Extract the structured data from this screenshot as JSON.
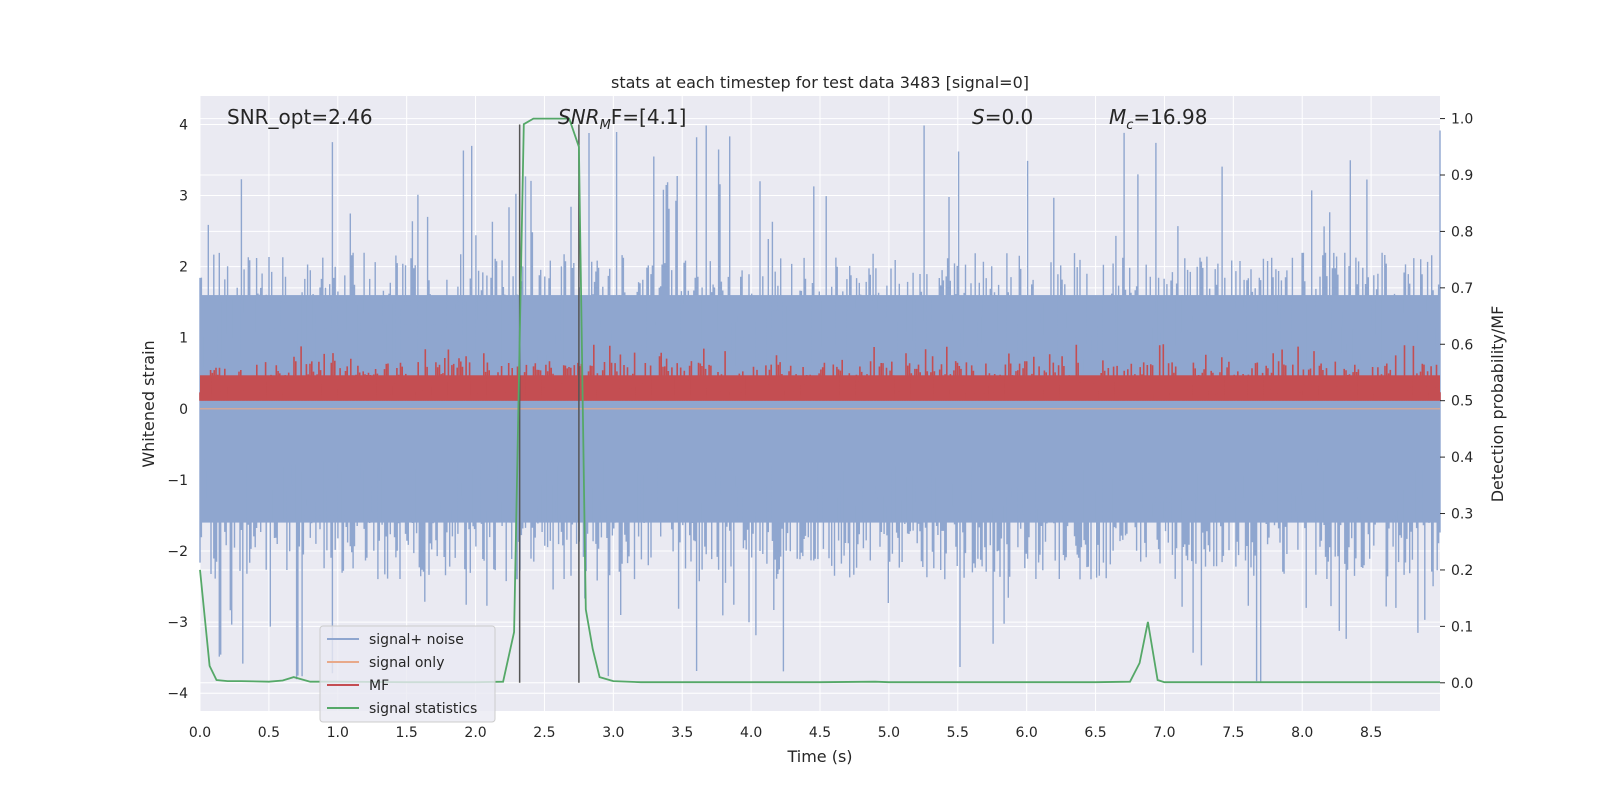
{
  "chart_data": {
    "type": "line",
    "title": "stats at each timestep for test data 3483 [signal=0]",
    "xlabel": "Time (s)",
    "ylabel": "Whitened strain",
    "ylabel_right": "Detection probability/MF",
    "xlim": [
      0,
      9.0
    ],
    "ylim": [
      -4.25,
      4.4
    ],
    "ylim_right": [
      -0.05,
      1.04
    ],
    "x_ticks": [
      "0.0",
      "0.5",
      "1.0",
      "1.5",
      "2.0",
      "2.5",
      "3.0",
      "3.5",
      "4.0",
      "4.5",
      "5.0",
      "5.5",
      "6.0",
      "6.5",
      "7.0",
      "7.5",
      "8.0",
      "8.5"
    ],
    "y_ticks": [
      "4",
      "3",
      "2",
      "1",
      "0",
      "−1",
      "−2",
      "−3",
      "−4"
    ],
    "y_ticks_right": [
      "1.0",
      "0.9",
      "0.8",
      "0.7",
      "0.6",
      "0.5",
      "0.4",
      "0.3",
      "0.2",
      "0.1",
      "0.0"
    ],
    "grid": true,
    "legend_position": "lower-left",
    "annotations": {
      "snr_opt": "SNR_opt=2.46",
      "snr_mf_base": "SNR",
      "snr_mf_sub": "M",
      "snr_mf_rest": "F=[4.1]",
      "s_base": "S",
      "s_rest": "=0.0",
      "mc_base": "M",
      "mc_sub": "c",
      "mc_rest": "=16.98"
    },
    "vertical_lines_x": [
      2.32,
      2.75
    ],
    "series": [
      {
        "name": "signal+ noise",
        "color": "#8fa6cf",
        "axis": "left",
        "description_values": "noise band approx between -1.6 and 1.6 with spikes to +/-4",
        "band": {
          "low_mean": -1.6,
          "high_mean": 1.6,
          "low_min": -3.9,
          "high_max": 4.0
        }
      },
      {
        "name": "signal only",
        "color": "#e8a98a",
        "axis": "left",
        "values_const": 0
      },
      {
        "name": "MF",
        "color": "#c44e52",
        "axis": "right",
        "band": {
          "low": 0.5,
          "high_mean": 0.55,
          "high_max": 0.6
        }
      },
      {
        "name": "signal statistics",
        "color": "#55a868",
        "axis": "right",
        "x": [
          0.0,
          0.07,
          0.12,
          0.2,
          0.3,
          0.5,
          0.6,
          0.68,
          0.8,
          1.0,
          1.5,
          2.0,
          2.2,
          2.28,
          2.35,
          2.42,
          2.5,
          2.6,
          2.68,
          2.75,
          2.8,
          2.85,
          2.9,
          3.0,
          3.2,
          3.5,
          4.0,
          4.5,
          4.9,
          5.0,
          5.5,
          6.0,
          6.5,
          6.75,
          6.82,
          6.88,
          6.95,
          7.0,
          7.5,
          8.0,
          8.5,
          9.0
        ],
        "values": [
          0.2,
          0.03,
          0.005,
          0.003,
          0.003,
          0.002,
          0.004,
          0.01,
          0.002,
          0.002,
          0.001,
          0.001,
          0.002,
          0.09,
          0.99,
          1.0,
          1.0,
          1.0,
          1.0,
          0.95,
          0.13,
          0.06,
          0.01,
          0.003,
          0.001,
          0.001,
          0.001,
          0.001,
          0.002,
          0.001,
          0.001,
          0.001,
          0.001,
          0.002,
          0.035,
          0.108,
          0.005,
          0.001,
          0.001,
          0.001,
          0.001,
          0.001
        ]
      }
    ]
  }
}
